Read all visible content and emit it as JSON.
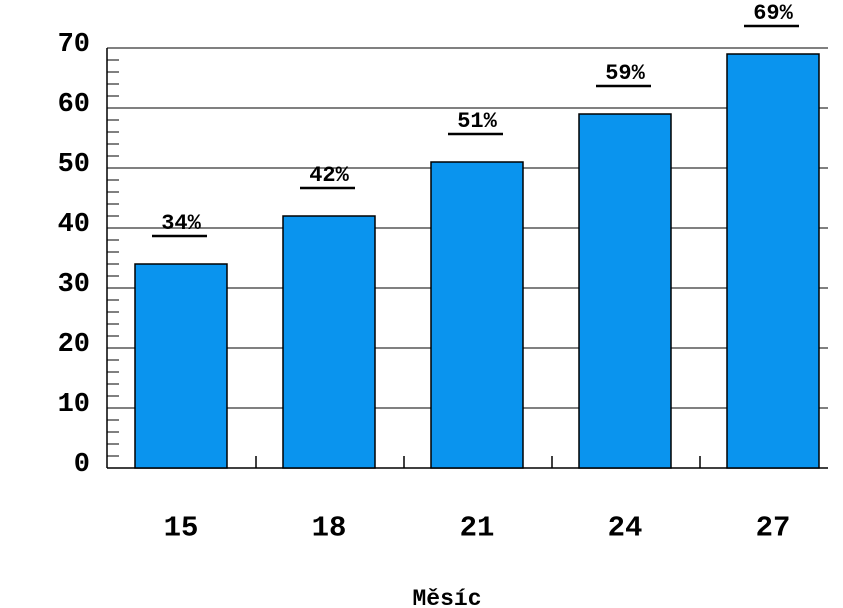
{
  "chart_data": {
    "type": "bar",
    "x_label": "Měsíc",
    "categories": [
      "15",
      "18",
      "21",
      "24",
      "27"
    ],
    "values": [
      34,
      42,
      51,
      59,
      69
    ],
    "value_labels": [
      "34%",
      "42%",
      "51%",
      "59%",
      "69%"
    ],
    "color": "#0a94ee",
    "ylim": [
      0,
      70
    ],
    "yticks": [
      0,
      10,
      20,
      30,
      40,
      50,
      60,
      70
    ],
    "minor_yticks": [
      2,
      4,
      6,
      8,
      12,
      14,
      16,
      18,
      22,
      24,
      26,
      28,
      32,
      34,
      36,
      38,
      42,
      44,
      46,
      48,
      52,
      54,
      56,
      58,
      62,
      64,
      66,
      68
    ],
    "grid": true
  }
}
